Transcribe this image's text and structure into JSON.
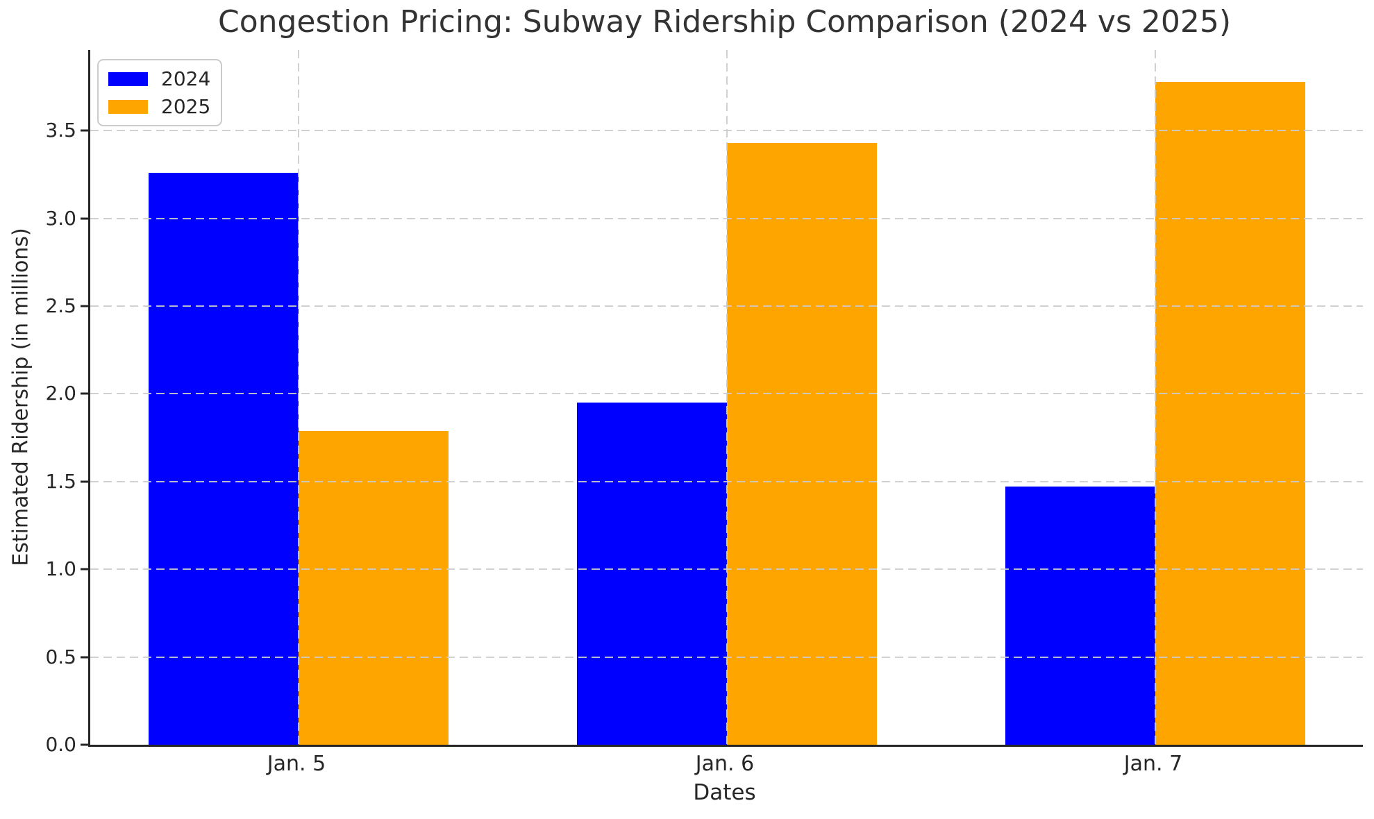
{
  "chart_data": {
    "type": "bar",
    "title": "Congestion Pricing: Subway Ridership Comparison (2024 vs 2025)",
    "xlabel": "Dates",
    "ylabel": "Estimated Ridership (in millions)",
    "categories": [
      "Jan. 5",
      "Jan. 6",
      "Jan. 7"
    ],
    "series": [
      {
        "name": "2024",
        "color": "#0000ff",
        "values": [
          3.26,
          1.95,
          1.47
        ]
      },
      {
        "name": "2025",
        "color": "#ffa500",
        "values": [
          1.79,
          3.43,
          3.78
        ]
      }
    ],
    "ylim": [
      0,
      3.96
    ],
    "yticks": [
      0.0,
      0.5,
      1.0,
      1.5,
      2.0,
      2.5,
      3.0,
      3.5
    ],
    "ytick_format_decimals": 1,
    "grid": "dashed",
    "grid_color": "#cccccc",
    "spine_color": "#262626",
    "text_color": "#262626",
    "legend_position": "upper left"
  }
}
